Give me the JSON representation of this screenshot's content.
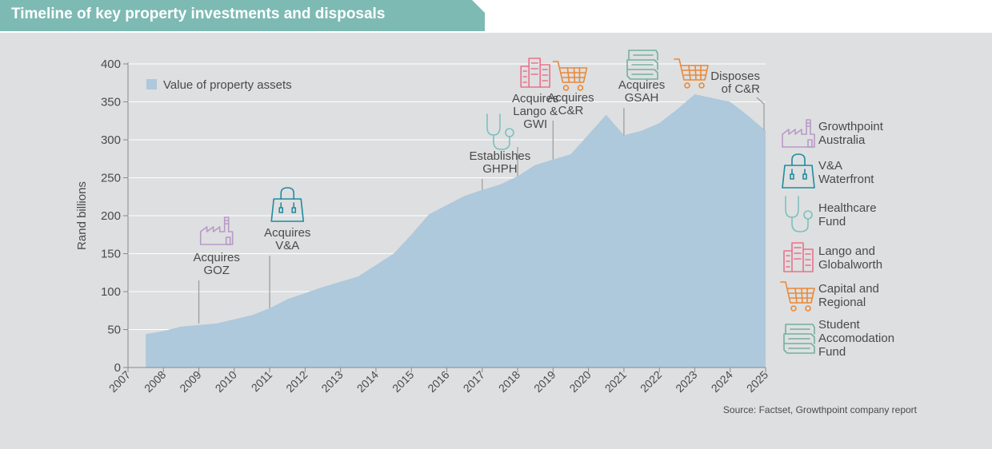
{
  "title": "Timeline of key property investments and disposals",
  "source": "Source: Factset, Growthpoint company report",
  "colors": {
    "banner": "#7dbab3",
    "panel": "#dedfe0",
    "area": "#aec8dc",
    "axis_text": "#4a4a4a",
    "grid": "#ffffff",
    "leader": "#9a9a9a",
    "purple": "#b79ac7",
    "teal_dark": "#1f8ba0",
    "teal_light": "#7cc0c0",
    "pink": "#e8728a",
    "orange": "#e8893a",
    "green": "#74b09e"
  },
  "chart_data": {
    "type": "area",
    "ylabel": "Rand billions",
    "ylim": [
      0,
      400
    ],
    "yticks": [
      "0",
      "50",
      "100",
      "150",
      "200",
      "250",
      "300",
      "350",
      "400"
    ],
    "xticks": [
      "2007",
      "2008",
      "2009",
      "2010",
      "2011",
      "2012",
      "2013",
      "2014",
      "2015",
      "2016",
      "2017",
      "2018",
      "2019",
      "2020",
      "2021",
      "2022",
      "2023",
      "2024",
      "2025"
    ],
    "grid": true,
    "legend_position": "top-left",
    "series": [
      {
        "name": "Value of property assets",
        "x": [
          2007.5,
          2008,
          2008.5,
          2009.5,
          2010.5,
          2011,
          2011.5,
          2012.5,
          2013.5,
          2014,
          2014.5,
          2015,
          2015.5,
          2016,
          2016.5,
          2017,
          2017.5,
          2018,
          2018.5,
          2019,
          2019.5,
          2020,
          2020.5,
          2021,
          2021.5,
          2022,
          2022.5,
          2023,
          2023.5,
          2024,
          2024.5,
          2025
        ],
        "y": [
          44,
          48,
          54,
          58,
          69,
          78,
          90,
          106,
          120,
          135,
          150,
          175,
          202,
          214,
          226,
          234,
          241,
          252,
          267,
          274,
          281,
          307,
          333,
          306,
          312,
          322,
          340,
          360,
          355,
          350,
          332,
          312
        ]
      }
    ],
    "annotations": [
      {
        "x": 2009.5,
        "lines": [
          "Acquires",
          "GOZ"
        ],
        "icon": "factory-icon"
      },
      {
        "x": 2011.5,
        "lines": [
          "Acquires",
          "V&A"
        ],
        "icon": "shopping-bag-icon"
      },
      {
        "x": 2017.5,
        "lines": [
          "Establishes",
          "GHPH"
        ],
        "icon": "stethoscope-icon"
      },
      {
        "x": 2018.5,
        "lines": [
          "Acquires",
          "Lango &",
          "GWI"
        ],
        "icon": "buildings-icon"
      },
      {
        "x": 2019.5,
        "lines": [
          "Acquires",
          "C&R"
        ],
        "icon": "shopping-cart-icon"
      },
      {
        "x": 2021.5,
        "lines": [
          "Acquires",
          "GSAH"
        ],
        "icon": "books-icon"
      },
      {
        "x": 2025.5,
        "lines": [
          "Disposes",
          "of C&R"
        ],
        "icon": "shopping-cart-icon"
      }
    ]
  },
  "icon_legend": [
    {
      "icon": "factory-icon",
      "lines": [
        "Growthpoint",
        "Australia"
      ]
    },
    {
      "icon": "shopping-bag-icon",
      "lines": [
        "V&A",
        "Waterfront"
      ]
    },
    {
      "icon": "stethoscope-icon",
      "lines": [
        "Healthcare",
        "Fund"
      ]
    },
    {
      "icon": "buildings-icon",
      "lines": [
        "Lango and",
        "Globalworth"
      ]
    },
    {
      "icon": "shopping-cart-icon",
      "lines": [
        "Capital and",
        "Regional"
      ]
    },
    {
      "icon": "books-icon",
      "lines": [
        "Student",
        "Accomodation",
        "Fund"
      ]
    }
  ]
}
